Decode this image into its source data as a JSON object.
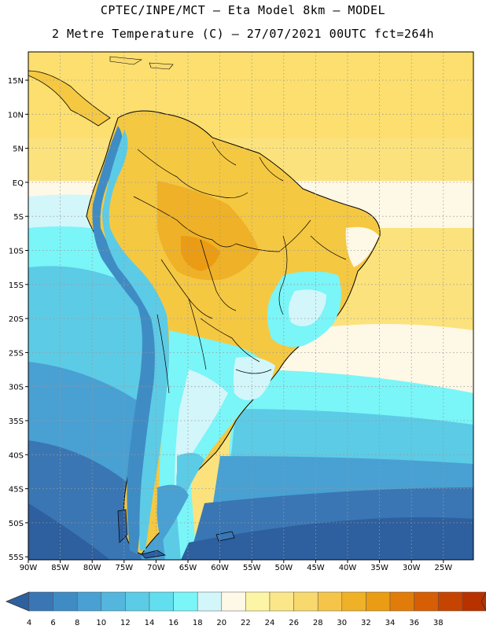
{
  "header": {
    "line1": "CPTEC/INPE/MCT –  Eta Model 8km – MODEL",
    "line2": "2 Metre Temperature (C) – 27/07/2021 00UTC fct=264h"
  },
  "map": {
    "lat_labels": [
      "15N",
      "10N",
      "5N",
      "EQ",
      "5S",
      "10S",
      "15S",
      "20S",
      "25S",
      "30S",
      "35S",
      "40S",
      "45S",
      "50S",
      "55S"
    ],
    "lon_labels": [
      "90W",
      "85W",
      "80W",
      "75W",
      "70W",
      "65W",
      "60W",
      "55W",
      "50W",
      "45W",
      "40W",
      "35W",
      "30W",
      "25W"
    ],
    "land_color": "#f5c842",
    "ocean_warm": "#f9e27a",
    "ocean_cold": "#2b67ad"
  },
  "colorbar": {
    "labels": [
      "4",
      "6",
      "8",
      "10",
      "12",
      "14",
      "16",
      "18",
      "20",
      "22",
      "24",
      "26",
      "28",
      "30",
      "32",
      "34",
      "36",
      "38"
    ],
    "colors": [
      "#3a76b4",
      "#3f8cc4",
      "#49a0d2",
      "#55b6dd",
      "#5ccbe6",
      "#61dfee",
      "#7af5f8",
      "#d2f6fa",
      "#fef8e6",
      "#fdf5a6",
      "#fbe78a",
      "#f8d96d",
      "#f5c54a",
      "#efb127",
      "#ea9c14",
      "#e17c0b",
      "#d65e04",
      "#c64402",
      "#b83200"
    ],
    "under_color": "#2e5f9e",
    "over_color": "#b83200"
  }
}
